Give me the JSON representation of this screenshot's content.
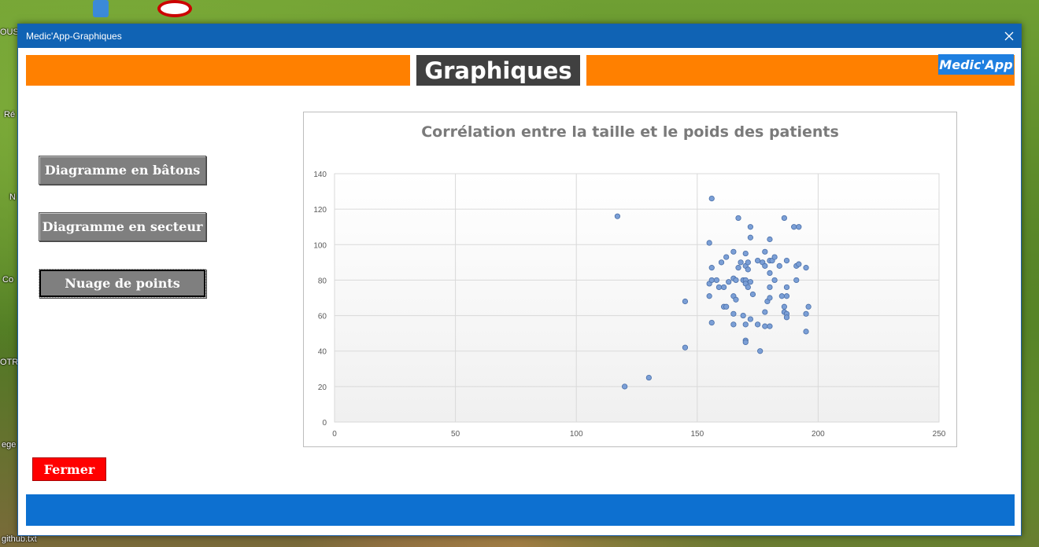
{
  "desktop": {
    "labels": [
      {
        "name": "desktop-label-ous",
        "text": "OUS"
      },
      {
        "name": "desktop-label-re",
        "text": "Ré"
      },
      {
        "name": "desktop-label-n",
        "text": "N"
      },
      {
        "name": "desktop-label-co",
        "text": "Co"
      },
      {
        "name": "desktop-label-otr",
        "text": "OTR"
      },
      {
        "name": "desktop-label-ege",
        "text": "ege"
      },
      {
        "name": "desktop-label-github",
        "text": "github.txt"
      }
    ]
  },
  "window": {
    "title": "Medic'App-Graphiques",
    "close_icon": "close-icon"
  },
  "header": {
    "title": "Graphiques",
    "brand": "Medic'App",
    "accent_color": "#ff8000",
    "title_bg": "#404040",
    "brand_bg": "#1e7fe0"
  },
  "sidebar": {
    "buttons": [
      {
        "label": "Diagramme en bâtons"
      },
      {
        "label": "Diagramme en secteur"
      },
      {
        "label": "Nuage de points"
      }
    ]
  },
  "footer": {
    "close_label": "Fermer",
    "bar_color": "#0d70d0"
  },
  "chart_data": {
    "type": "scatter",
    "title": "Corrélation entre la taille et le poids des patients",
    "xlabel": "",
    "ylabel": "",
    "xlim": [
      0,
      250
    ],
    "ylim": [
      0,
      140
    ],
    "x_ticks": [
      0,
      50,
      100,
      150,
      200,
      250
    ],
    "y_ticks": [
      0,
      20,
      40,
      60,
      80,
      100,
      120,
      140
    ],
    "grid": true,
    "marker_color": "#7b9fd6",
    "points": [
      [
        117,
        116
      ],
      [
        120,
        20
      ],
      [
        130,
        25
      ],
      [
        145,
        68
      ],
      [
        145,
        42
      ],
      [
        155,
        101
      ],
      [
        155,
        78
      ],
      [
        156,
        126
      ],
      [
        155,
        71
      ],
      [
        156,
        80
      ],
      [
        156,
        56
      ],
      [
        156,
        87
      ],
      [
        158,
        80
      ],
      [
        159,
        76
      ],
      [
        160,
        90
      ],
      [
        161,
        76
      ],
      [
        161,
        65
      ],
      [
        162,
        65
      ],
      [
        162,
        93
      ],
      [
        163,
        79
      ],
      [
        165,
        96
      ],
      [
        165,
        81
      ],
      [
        165,
        71
      ],
      [
        165,
        61
      ],
      [
        165,
        55
      ],
      [
        166,
        69
      ],
      [
        166,
        80
      ],
      [
        167,
        115
      ],
      [
        167,
        87
      ],
      [
        168,
        90
      ],
      [
        169,
        60
      ],
      [
        169,
        80
      ],
      [
        170,
        95
      ],
      [
        170,
        88
      ],
      [
        170,
        80
      ],
      [
        170,
        78
      ],
      [
        170,
        55
      ],
      [
        170,
        46
      ],
      [
        170,
        45
      ],
      [
        171,
        90
      ],
      [
        171,
        86
      ],
      [
        171,
        76
      ],
      [
        172,
        110
      ],
      [
        172,
        104
      ],
      [
        172,
        79
      ],
      [
        172,
        58
      ],
      [
        173,
        72
      ],
      [
        175,
        91
      ],
      [
        175,
        55
      ],
      [
        176,
        40
      ],
      [
        177,
        90
      ],
      [
        178,
        96
      ],
      [
        178,
        88
      ],
      [
        178,
        62
      ],
      [
        178,
        54
      ],
      [
        179,
        68
      ],
      [
        180,
        103
      ],
      [
        180,
        70
      ],
      [
        180,
        76
      ],
      [
        180,
        91
      ],
      [
        180,
        84
      ],
      [
        180,
        54
      ],
      [
        181,
        91
      ],
      [
        182,
        93
      ],
      [
        182,
        80
      ],
      [
        184,
        88
      ],
      [
        185,
        71
      ],
      [
        186,
        115
      ],
      [
        186,
        65
      ],
      [
        186,
        62
      ],
      [
        187,
        91
      ],
      [
        187,
        61
      ],
      [
        187,
        59
      ],
      [
        187,
        76
      ],
      [
        187,
        71
      ],
      [
        190,
        110
      ],
      [
        191,
        80
      ],
      [
        191,
        88
      ],
      [
        192,
        110
      ],
      [
        192,
        89
      ],
      [
        195,
        87
      ],
      [
        195,
        61
      ],
      [
        195,
        51
      ],
      [
        196,
        65
      ]
    ]
  }
}
